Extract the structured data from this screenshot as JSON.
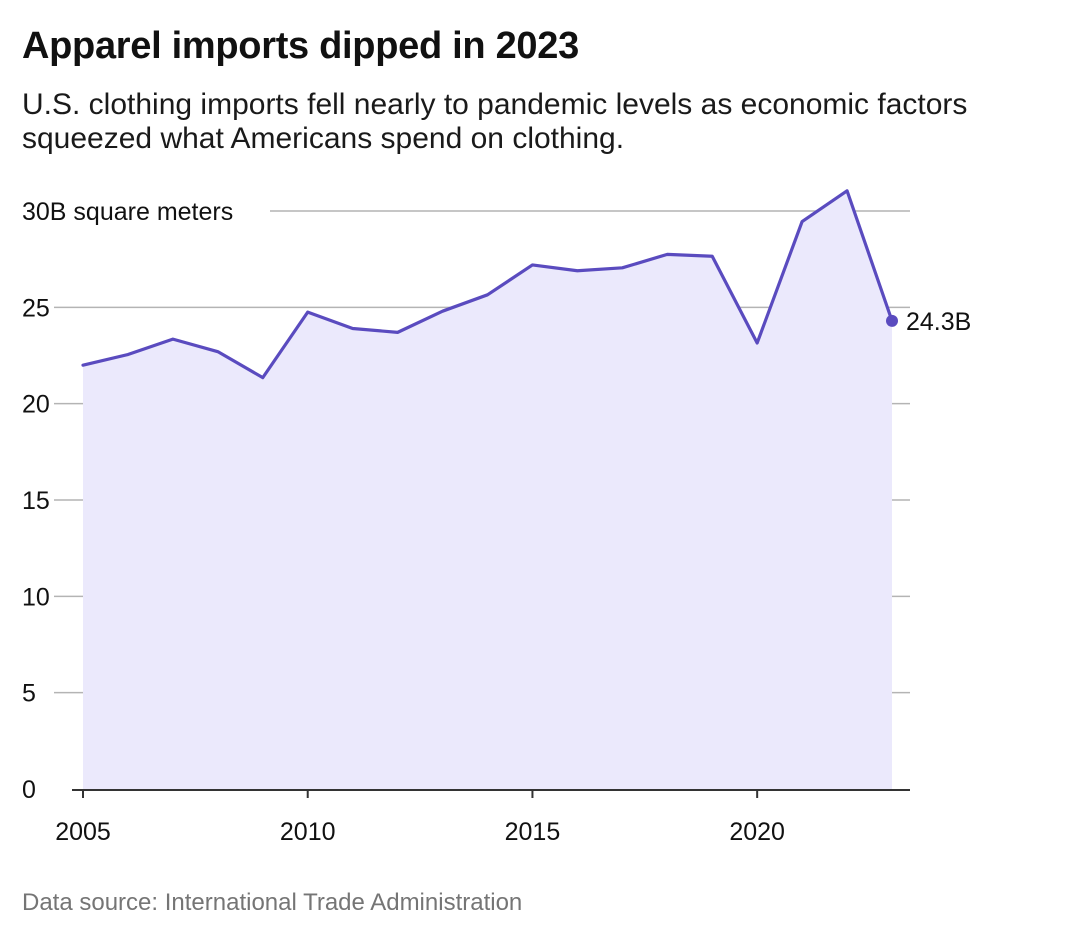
{
  "chart_data": {
    "type": "area",
    "title": "Apparel imports dipped in 2023",
    "subtitle": "U.S. clothing imports fell nearly to pandemic levels as economic factors squeezed what Americans spend on clothing.",
    "x": [
      2005,
      2006,
      2007,
      2008,
      2009,
      2010,
      2011,
      2012,
      2013,
      2014,
      2015,
      2016,
      2017,
      2018,
      2019,
      2020,
      2021,
      2022,
      2023
    ],
    "series": [
      {
        "values": [
          22.0,
          22.55,
          23.35,
          22.7,
          21.35,
          24.75,
          23.9,
          23.7,
          24.8,
          25.65,
          27.2,
          26.9,
          27.05,
          27.75,
          27.65,
          23.15,
          29.45,
          31.05,
          24.3
        ]
      }
    ],
    "ylim": [
      0,
      30
    ],
    "y_ticks": [
      0,
      5,
      10,
      15,
      20,
      25,
      30
    ],
    "y_tick_labels": [
      "0",
      "5",
      "10",
      "15",
      "20",
      "25",
      "30B square meters"
    ],
    "x_ticks": [
      2005,
      2010,
      2015,
      2020
    ],
    "x_tick_labels": [
      "2005",
      "2010",
      "2015",
      "2020"
    ],
    "end_label": "24.3B",
    "grid": true,
    "colors": {
      "line": "#5a4bbf",
      "fill": "#ebe9fc",
      "grid": "#b4b4b4",
      "axis": "#333333"
    }
  },
  "source": "Data source: International Trade Administration"
}
